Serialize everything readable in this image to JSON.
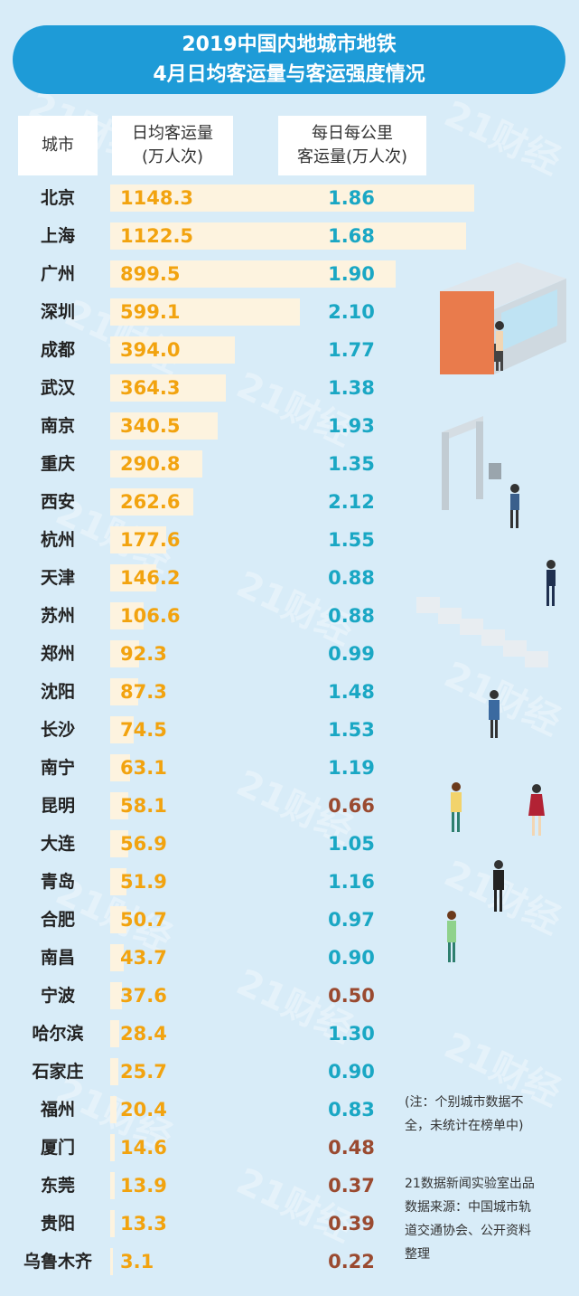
{
  "title": {
    "line1": "2019中国内地城市地铁",
    "line2": "4月日均客运量与客运强度情况"
  },
  "watermark_text": "21财经",
  "headers": {
    "city": "城市",
    "avg_line1": "日均客运量",
    "avg_line2": "(万人次)",
    "km_line1": "每日每公里",
    "km_line2": "客运量(万人次)"
  },
  "colors": {
    "background": "#d8ecf8",
    "banner": "#1e9bd7",
    "bar": "#fdf3df",
    "avg_value": "#f2a30f",
    "km_high": "#1aa7c4",
    "km_low": "#9a4a30"
  },
  "chart_data": {
    "type": "bar",
    "title": "2019中国内地城市地铁 4月日均客运量与客运强度情况",
    "categories": [
      "北京",
      "上海",
      "广州",
      "深圳",
      "成都",
      "武汉",
      "南京",
      "重庆",
      "西安",
      "杭州",
      "天津",
      "苏州",
      "郑州",
      "沈阳",
      "长沙",
      "南宁",
      "昆明",
      "大连",
      "青岛",
      "合肥",
      "南昌",
      "宁波",
      "哈尔滨",
      "石家庄",
      "福州",
      "厦门",
      "东莞",
      "贵阳",
      "乌鲁木齐"
    ],
    "series": [
      {
        "name": "日均客运量(万人次)",
        "values": [
          1148.3,
          1122.5,
          899.5,
          599.1,
          394.0,
          364.3,
          340.5,
          290.8,
          262.6,
          177.6,
          146.2,
          106.6,
          92.3,
          87.3,
          74.5,
          63.1,
          58.1,
          56.9,
          51.9,
          50.7,
          43.7,
          37.6,
          28.4,
          25.7,
          20.4,
          14.6,
          13.9,
          13.3,
          3.1
        ],
        "labels": [
          "1148.3",
          "1122.5",
          "899.5",
          "599.1",
          "394.0",
          "364.3",
          "340.5",
          "290.8",
          "262.6",
          "177.6",
          "146.2",
          "106.6",
          "92.3",
          "87.3",
          "74.5",
          "63.1",
          "58.1",
          "56.9",
          "51.9",
          "50.7",
          "43.7",
          "37.6",
          "28.4",
          "25.7",
          "20.4",
          "14.6",
          "13.9",
          "13.3",
          "3.1"
        ]
      },
      {
        "name": "每日每公里客运量(万人次)",
        "values": [
          1.86,
          1.68,
          1.9,
          2.1,
          1.77,
          1.38,
          1.93,
          1.35,
          2.12,
          1.55,
          0.88,
          0.88,
          0.99,
          1.48,
          1.53,
          1.19,
          0.66,
          1.05,
          1.16,
          0.97,
          0.9,
          0.5,
          1.3,
          0.9,
          0.83,
          0.48,
          0.37,
          0.39,
          0.22
        ],
        "labels": [
          "1.86",
          "1.68",
          "1.90",
          "2.10",
          "1.77",
          "1.38",
          "1.93",
          "1.35",
          "2.12",
          "1.55",
          "0.88",
          "0.88",
          "0.99",
          "1.48",
          "1.53",
          "1.19",
          "0.66",
          "1.05",
          "1.16",
          "0.97",
          "0.90",
          "0.50",
          "1.30",
          "0.90",
          "0.83",
          "0.48",
          "0.37",
          "0.39",
          "0.22"
        ]
      }
    ],
    "low_km_cities": [
      "昆明",
      "宁波",
      "厦门",
      "东莞",
      "贵阳",
      "乌鲁木齐"
    ]
  },
  "notes": {
    "disclaimer_line1": "(注：个别城市数据不",
    "disclaimer_line2": "全，未统计在榜单中)",
    "source_line1": "21数据新闻实验室出品",
    "source_line2": "数据来源：中国城市轨",
    "source_line3": "道交通协会、公开资料",
    "source_line4": "整理"
  }
}
